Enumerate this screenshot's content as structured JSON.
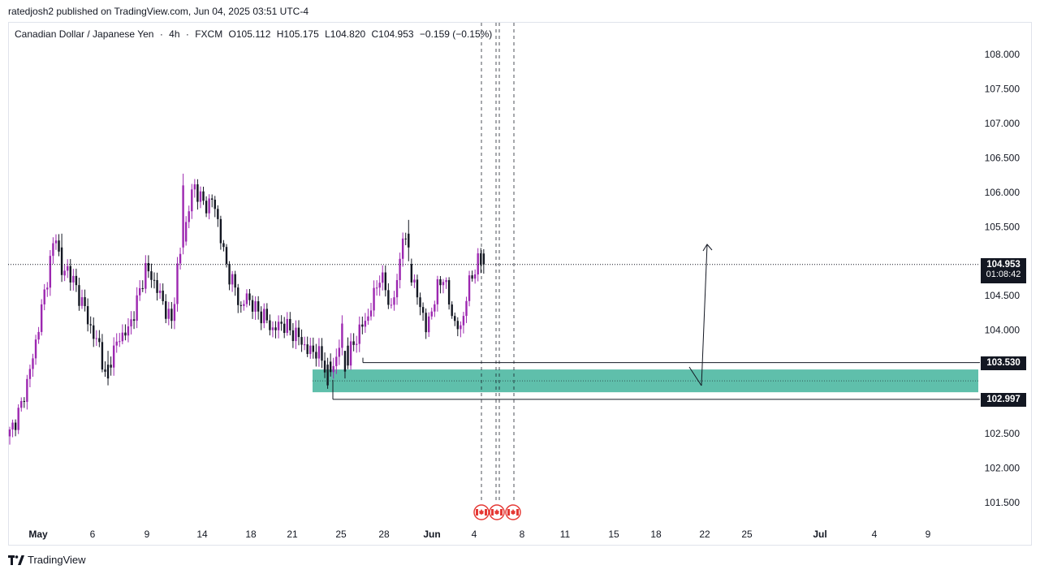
{
  "header": {
    "published_line": "ratedjosh2 published on TradingView.com, Jun 04, 2025 03:51 UTC-4"
  },
  "legend": {
    "symbol": "Canadian Dollar / Japanese Yen",
    "sep1": "·",
    "interval": "4h",
    "sep2": "·",
    "source": "FXCM",
    "open": "O105.112",
    "high": "H105.175",
    "low": "L104.820",
    "close": "C104.953",
    "change": "−0.159 (−0.15%)"
  },
  "price_tags": {
    "last_price": "104.953",
    "countdown": "01:08:42",
    "zone_top": "103.530",
    "zone_bottom": "102.997"
  },
  "footer": {
    "brand": "TradingView"
  },
  "colors": {
    "bull": "#9c27b0",
    "bear": "#131722",
    "zone_fill": "#5fbfab",
    "axis_text": "#131722",
    "event_red": "#e53935"
  },
  "icons": {
    "event_markers": "canada-flag-event-icon",
    "logo": "tradingview-logo-icon"
  },
  "chart_data": {
    "type": "candlestick",
    "y_axis": {
      "range": [
        101.2,
        108.3
      ],
      "tick_labels": [
        "108.000",
        "107.500",
        "107.000",
        "106.500",
        "106.000",
        "105.500",
        "104.500",
        "104.000",
        "102.500",
        "102.000",
        "101.500"
      ],
      "side": "right"
    },
    "x_axis": {
      "tick_labels": [
        "May",
        "6",
        "9",
        "14",
        "18",
        "21",
        "25",
        "28",
        "Jun",
        "4",
        "8",
        "11",
        "15",
        "18",
        "22",
        "25",
        "Jul",
        "4",
        "9"
      ]
    },
    "last_price": 104.953,
    "zone": {
      "top": 103.53,
      "bottom": 102.997,
      "fill_top": 103.43,
      "fill_bottom": 103.1
    },
    "projection": {
      "from_index": 200,
      "from_price": 103.15,
      "to_index": 202,
      "to_price": 105.25
    },
    "event_markers": [
      "Jun 4",
      "Jun 5",
      "Jun 6"
    ],
    "grid": false,
    "anchors": [
      [
        0,
        102.5
      ],
      [
        4,
        102.9
      ],
      [
        8,
        103.6
      ],
      [
        11,
        104.3
      ],
      [
        14,
        105.0
      ],
      [
        16,
        105.4
      ],
      [
        18,
        104.8
      ],
      [
        20,
        104.9
      ],
      [
        23,
        104.6
      ],
      [
        26,
        104.3
      ],
      [
        29,
        103.9
      ],
      [
        31,
        103.8
      ],
      [
        33,
        103.3
      ],
      [
        35,
        103.6
      ],
      [
        38,
        103.9
      ],
      [
        41,
        104.0
      ],
      [
        44,
        104.4
      ],
      [
        47,
        104.9
      ],
      [
        50,
        104.7
      ],
      [
        53,
        104.4
      ],
      [
        56,
        104.1
      ],
      [
        58,
        104.9
      ],
      [
        60,
        105.3
      ],
      [
        62,
        105.8
      ],
      [
        64,
        106.1
      ],
      [
        66,
        105.9
      ],
      [
        68,
        105.8
      ],
      [
        70,
        105.9
      ],
      [
        72,
        105.6
      ],
      [
        74,
        105.1
      ],
      [
        76,
        104.8
      ],
      [
        78,
        104.6
      ],
      [
        80,
        104.3
      ],
      [
        82,
        104.5
      ],
      [
        85,
        104.3
      ],
      [
        88,
        104.2
      ],
      [
        91,
        104.0
      ],
      [
        94,
        104.1
      ],
      [
        97,
        104.0
      ],
      [
        100,
        103.9
      ],
      [
        103,
        103.7
      ],
      [
        106,
        103.7
      ],
      [
        109,
        103.5
      ],
      [
        111,
        103.4
      ],
      [
        113,
        103.6
      ],
      [
        115,
        104.0
      ],
      [
        117,
        103.6
      ],
      [
        119,
        103.8
      ],
      [
        121,
        104.0
      ],
      [
        124,
        104.2
      ],
      [
        126,
        104.5
      ],
      [
        128,
        104.8
      ],
      [
        130,
        104.6
      ],
      [
        132,
        104.3
      ],
      [
        134,
        104.7
      ],
      [
        136,
        105.4
      ],
      [
        138,
        105.0
      ],
      [
        140,
        104.6
      ],
      [
        142,
        104.4
      ],
      [
        144,
        104.0
      ],
      [
        146,
        104.3
      ],
      [
        148,
        104.6
      ],
      [
        150,
        104.8
      ],
      [
        152,
        104.4
      ],
      [
        154,
        104.1
      ],
      [
        156,
        104.0
      ],
      [
        158,
        104.5
      ],
      [
        160,
        104.8
      ],
      [
        162,
        105.0
      ],
      [
        164,
        104.95
      ]
    ],
    "pinned_candles": [
      [
        60,
        105.2,
        106.27,
        105.1,
        106.1
      ],
      [
        18,
        105.2,
        105.4,
        104.7,
        104.8
      ],
      [
        34,
        103.5,
        103.7,
        103.2,
        103.3
      ],
      [
        110,
        103.5,
        103.6,
        103.15,
        103.2
      ],
      [
        116,
        103.7,
        103.7,
        103.3,
        103.4
      ],
      [
        138,
        105.4,
        105.6,
        105.0,
        105.2
      ],
      [
        164,
        105.112,
        105.175,
        104.82,
        104.953
      ]
    ]
  }
}
